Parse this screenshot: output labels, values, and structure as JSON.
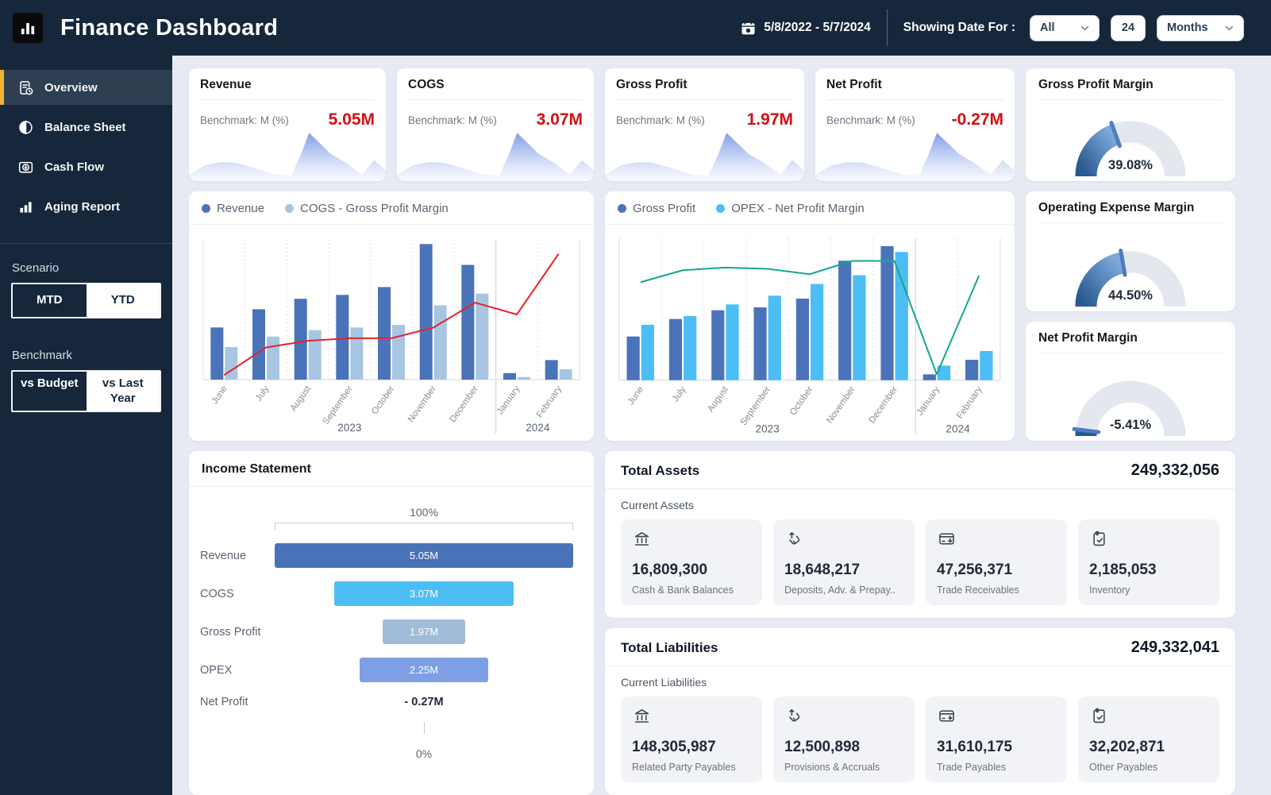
{
  "header": {
    "title": "Finance Dashboard",
    "date_range": "5/8/2022 - 5/7/2024",
    "showing_date_for_label": "Showing Date For :",
    "scope_value": "All",
    "period_count": "24",
    "period_unit": "Months"
  },
  "sidebar": {
    "items": [
      {
        "label": "Overview",
        "icon": "overview-icon",
        "active": true
      },
      {
        "label": "Balance Sheet",
        "icon": "balance-sheet-icon",
        "active": false
      },
      {
        "label": "Cash Flow",
        "icon": "cash-flow-icon",
        "active": false
      },
      {
        "label": "Aging Report",
        "icon": "aging-report-icon",
        "active": false
      }
    ],
    "scenario": {
      "label": "Scenario",
      "options": [
        "MTD",
        "YTD"
      ],
      "selected": "MTD"
    },
    "benchmark": {
      "label": "Benchmark",
      "options": [
        "vs Budget",
        "vs Last Year"
      ],
      "selected": "vs Budget"
    }
  },
  "kpis": [
    {
      "title": "Revenue",
      "benchmark_label": "Benchmark: M (%)",
      "value": "5.05M"
    },
    {
      "title": "COGS",
      "benchmark_label": "Benchmark: M (%)",
      "value": "3.07M"
    },
    {
      "title": "Gross Profit",
      "benchmark_label": "Benchmark: M (%)",
      "value": "1.97M"
    },
    {
      "title": "Net Profit",
      "benchmark_label": "Benchmark: M (%)",
      "value": "-0.27M"
    }
  ],
  "gauges": [
    {
      "title": "Gross Profit Margin",
      "value_label": "39.08%",
      "percent": 39.08
    },
    {
      "title": "Operating Expense Margin",
      "value_label": "44.50%",
      "percent": 44.5
    },
    {
      "title": "Net Profit Margin",
      "value_label": "-5.41%",
      "percent": -5.41
    }
  ],
  "chart_data": [
    {
      "type": "bar",
      "legend": [
        "Revenue",
        "COGS - Gross Profit Margin"
      ],
      "categories": [
        "June",
        "July",
        "August",
        "September",
        "October",
        "November",
        "December",
        "January",
        "February"
      ],
      "year_groups": [
        {
          "label": "2023",
          "months": 7
        },
        {
          "label": "2024",
          "months": 2
        }
      ],
      "series": [
        {
          "name": "Revenue",
          "kind": "bar",
          "color": "#4A73BA",
          "values_m": [
            0.4,
            0.54,
            0.62,
            0.65,
            0.71,
            1.04,
            0.88,
            0.05,
            0.15
          ]
        },
        {
          "name": "COGS",
          "kind": "bar",
          "color": "#A7C6E2",
          "values_m": [
            0.25,
            0.33,
            0.38,
            0.4,
            0.42,
            0.57,
            0.66,
            0.02,
            0.08
          ]
        },
        {
          "name": "Gross Profit Margin",
          "kind": "line",
          "color": "#E3242B",
          "values_pct": [
            1,
            22,
            27,
            29,
            29,
            37,
            56,
            47,
            93
          ]
        }
      ],
      "ylim_m": [
        0,
        1.06
      ],
      "grid": "vertical-dashed",
      "legend_position": "top-left"
    },
    {
      "type": "bar",
      "legend": [
        "Gross Profit",
        "OPEX - Net Profit Margin"
      ],
      "categories": [
        "June",
        "July",
        "August",
        "September",
        "October",
        "November",
        "December",
        "January",
        "February"
      ],
      "year_groups": [
        {
          "label": "2023",
          "months": 7
        },
        {
          "label": "2024",
          "months": 2
        }
      ],
      "series": [
        {
          "name": "Gross Profit",
          "kind": "bar",
          "color": "#4A73BA",
          "values_m": [
            0.15,
            0.21,
            0.24,
            0.25,
            0.28,
            0.41,
            0.46,
            0.02,
            0.07
          ]
        },
        {
          "name": "OPEX",
          "kind": "bar",
          "color": "#4DBDF5",
          "values_m": [
            0.19,
            0.22,
            0.26,
            0.29,
            0.33,
            0.36,
            0.44,
            0.05,
            0.1
          ]
        },
        {
          "name": "Net Profit Margin",
          "kind": "line",
          "color": "#12A88E",
          "values_pct": [
            71,
            80,
            82,
            81,
            77,
            87,
            87,
            2,
            76
          ]
        }
      ],
      "ylim_m": [
        0,
        0.48
      ],
      "grid": "vertical-dashed",
      "legend_position": "top-left"
    },
    {
      "type": "funnel",
      "title": "Income Statement",
      "scale_top_label": "100%",
      "scale_bottom_label": "0%",
      "rows": [
        {
          "label": "Revenue",
          "value": "5.05M",
          "bar_pct": 100,
          "color": "#4A72B8"
        },
        {
          "label": "COGS",
          "value": "3.07M",
          "bar_pct": 60,
          "color": "#4DBDF5"
        },
        {
          "label": "Gross Profit",
          "value": "1.97M",
          "bar_pct": 27.5,
          "color": "#A0BCD8"
        },
        {
          "label": "OPEX",
          "value": "2.25M",
          "bar_pct": 43,
          "color": "#7E9FE4"
        },
        {
          "label": "Net Profit",
          "value": "- 0.27M",
          "bar_pct": 0,
          "color": null
        }
      ]
    }
  ],
  "balance_sections": [
    {
      "title": "Total Assets",
      "total": "249,332,056",
      "group_label": "Current Assets",
      "items": [
        {
          "icon": "bank-icon",
          "value": "16,809,300",
          "label": "Cash & Bank Balances"
        },
        {
          "icon": "deposits-icon",
          "value": "18,648,217",
          "label": "Deposits, Adv. & Prepay.."
        },
        {
          "icon": "receivables-icon",
          "value": "47,256,371",
          "label": "Trade Receivables"
        },
        {
          "icon": "inventory-icon",
          "value": "2,185,053",
          "label": "Inventory"
        }
      ]
    },
    {
      "title": "Total Liabilities",
      "total": "249,332,041",
      "group_label": "Current Liabilities",
      "items": [
        {
          "icon": "bank-icon",
          "value": "148,305,987",
          "label": "Related Party Payables"
        },
        {
          "icon": "deposits-icon",
          "value": "12,500,898",
          "label": "Provisions & Accruals"
        },
        {
          "icon": "receivables-icon",
          "value": "31,610,175",
          "label": "Trade Payables"
        },
        {
          "icon": "inventory-icon",
          "value": "32,202,871",
          "label": "Other Payables"
        }
      ]
    }
  ],
  "colors": {
    "navy": "#16273B",
    "accent_yellow": "#F2B22E",
    "kpi_red": "#D30F12",
    "bar_dark_blue": "#4A73BA",
    "bar_light_blue": "#A7C6E2",
    "bar_cyan": "#4DBDF5",
    "line_red": "#E3242B",
    "line_teal": "#12A88E",
    "gauge_fill_start": "#27588F",
    "gauge_fill_end": "#7FA9DC",
    "gauge_track": "#E3E8EF"
  }
}
